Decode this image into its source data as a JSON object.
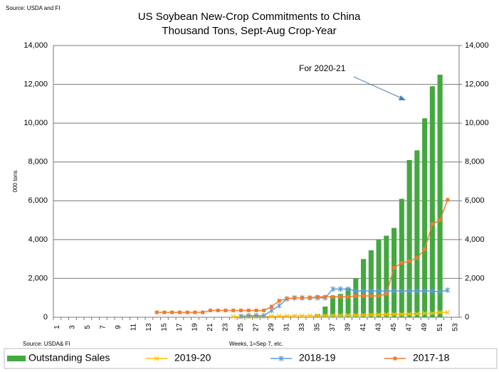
{
  "chart_data": {
    "type": "bar_line",
    "title": "US Soybean New-Crop Commitments to China",
    "subtitle": "Thousand Tons, Sept-Aug Crop-Year",
    "source_top": "Source: USDA and  FI",
    "source_bottom": "Source: USDA& FI",
    "y_label": "000 tons",
    "x_label": "Weeks, 1=Sep 7, etc.",
    "annotation": "For 2020-21",
    "categories": [
      1,
      null,
      3,
      null,
      5,
      null,
      7,
      null,
      9,
      null,
      11,
      null,
      13,
      null,
      15,
      null,
      17,
      null,
      19,
      null,
      21,
      null,
      23,
      null,
      25,
      null,
      27,
      null,
      29,
      null,
      31,
      null,
      33,
      null,
      35,
      null,
      37,
      null,
      39,
      null,
      41,
      null,
      43,
      null,
      45,
      null,
      47,
      null,
      49,
      null,
      51,
      null,
      53
    ],
    "series": [
      {
        "name": "Outstanding Sales",
        "type": "bar",
        "color": "#43a83f",
        "values": [
          null,
          null,
          null,
          null,
          null,
          null,
          null,
          null,
          null,
          null,
          null,
          null,
          null,
          null,
          null,
          null,
          null,
          null,
          null,
          null,
          null,
          null,
          null,
          null,
          null,
          null,
          null,
          null,
          null,
          null,
          null,
          null,
          null,
          null,
          150,
          550,
          1100,
          1200,
          1500,
          2000,
          3000,
          3450,
          4000,
          4200,
          4600,
          6100,
          8100,
          8600,
          10250,
          11900,
          12500,
          null,
          null
        ]
      },
      {
        "name": "2019-20",
        "type": "line",
        "marker": "x",
        "color": "#ffc000",
        "values": [
          null,
          null,
          null,
          null,
          null,
          null,
          null,
          null,
          null,
          null,
          null,
          null,
          null,
          null,
          null,
          null,
          null,
          null,
          null,
          null,
          null,
          null,
          null,
          30,
          30,
          40,
          40,
          50,
          50,
          60,
          60,
          70,
          70,
          70,
          80,
          80,
          90,
          90,
          100,
          100,
          110,
          120,
          130,
          140,
          150,
          150,
          160,
          170,
          200,
          200,
          250,
          250,
          null
        ]
      },
      {
        "name": "2018-19",
        "type": "line",
        "marker": "star",
        "color": "#5b9bd5",
        "values": [
          null,
          null,
          null,
          null,
          null,
          null,
          null,
          null,
          null,
          null,
          null,
          null,
          null,
          null,
          null,
          null,
          null,
          null,
          null,
          null,
          null,
          null,
          null,
          null,
          50,
          80,
          80,
          80,
          350,
          600,
          950,
          1000,
          1000,
          1000,
          1000,
          1000,
          1450,
          1450,
          1450,
          1350,
          1350,
          1350,
          1350,
          1350,
          1350,
          1350,
          1350,
          1350,
          1350,
          1350,
          1300,
          1400,
          null
        ]
      },
      {
        "name": "2017-18",
        "type": "line",
        "marker": "square",
        "color": "#ed7d31",
        "values": [
          null,
          null,
          null,
          null,
          null,
          null,
          null,
          null,
          null,
          null,
          null,
          null,
          null,
          250,
          250,
          250,
          250,
          250,
          250,
          250,
          350,
          350,
          350,
          350,
          350,
          350,
          350,
          350,
          550,
          850,
          950,
          1000,
          1000,
          1000,
          1050,
          1050,
          1050,
          1050,
          1050,
          1100,
          1100,
          1100,
          1100,
          1200,
          2550,
          2800,
          2900,
          3050,
          3500,
          4800,
          5000,
          6050,
          null
        ]
      }
    ],
    "ylim": [
      0,
      14000
    ],
    "yticks": [
      0,
      {
        "value": 2000,
        "label": "2,000"
      },
      {
        "value": 4000,
        "label": "4,000"
      },
      {
        "value": 6000,
        "label": "6,000"
      },
      {
        "value": 8000,
        "label": "8,000"
      },
      {
        "value": 10000,
        "label": "10,000"
      },
      {
        "value": 12000,
        "label": "12,000"
      },
      {
        "value": 14000,
        "label": "14,000"
      }
    ],
    "y2lim": [
      0,
      14000
    ],
    "y2ticks": [
      0,
      {
        "value": 2000,
        "label": "2,000"
      },
      {
        "value": 4000,
        "label": "4,000"
      },
      {
        "value": 6000,
        "label": "6,000"
      },
      {
        "value": 8000,
        "label": "8,000"
      },
      {
        "value": 10000,
        "label": "10,000"
      },
      {
        "value": 12000,
        "label": "12,000"
      },
      {
        "value": 14000,
        "label": "14,000"
      }
    ],
    "grid": true,
    "legend": "bottom"
  }
}
